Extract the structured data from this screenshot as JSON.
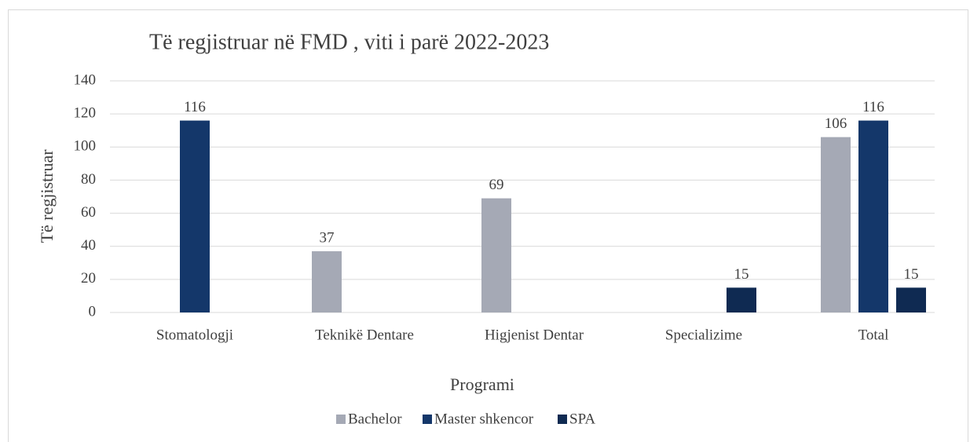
{
  "chart_data": {
    "type": "bar",
    "title": "Të regjistruar në FMD , viti i parë 2022-2023",
    "x_label": "Programi",
    "y_label": "Të regjistruar",
    "categories": [
      "Stomatologji",
      "Teknikë Dentare",
      "Higjenist Dentar",
      "Specializime",
      "Total"
    ],
    "series": [
      {
        "name": "Bachelor",
        "color": "#a5a9b5",
        "values": [
          null,
          37,
          69,
          null,
          106
        ]
      },
      {
        "name": "Master shkencor",
        "color": "#14376a",
        "values": [
          116,
          null,
          null,
          null,
          116
        ]
      },
      {
        "name": "SPA",
        "color": "#0f2a52",
        "values": [
          null,
          null,
          null,
          15,
          15
        ]
      }
    ],
    "ylim": [
      0,
      140
    ],
    "yticks": [
      0,
      20,
      40,
      60,
      80,
      100,
      120,
      140
    ],
    "grid": true,
    "legend": "bottom"
  }
}
